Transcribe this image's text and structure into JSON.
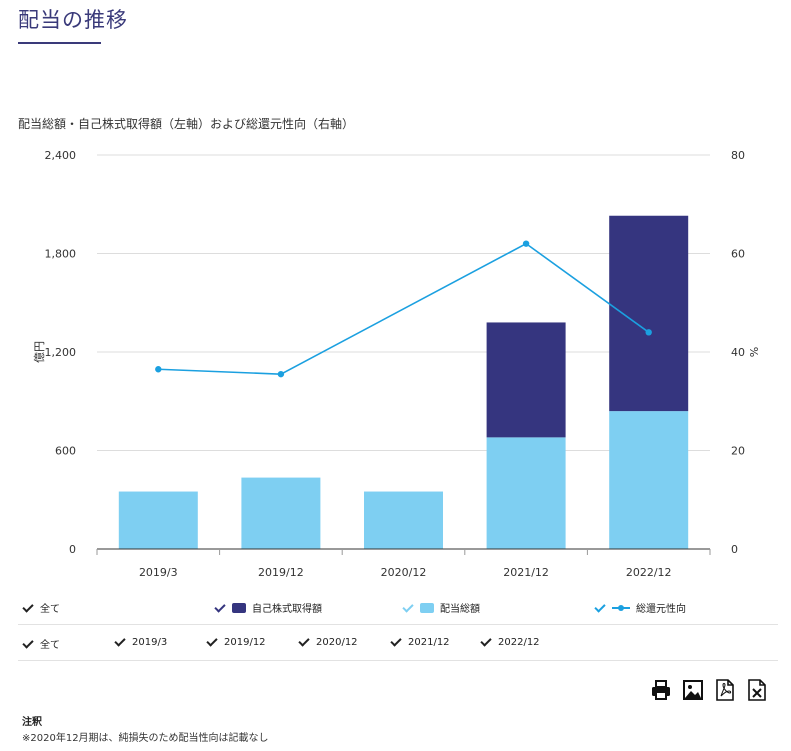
{
  "page": {
    "title": "配当の推移",
    "chart_caption": "配当総額・自己株式取得額（左軸）および総還元性向（右軸）",
    "notes_heading": "注釈",
    "notes_text": "※2020年12月期は、純損失のため配当性向は記載なし"
  },
  "legend": {
    "all_label": "全て",
    "series_labels": [
      "自己株式取得額",
      "配当総額",
      "総還元性向"
    ]
  },
  "category_filter": {
    "all_label": "全て",
    "items": [
      "2019/3",
      "2019/12",
      "2020/12",
      "2021/12",
      "2022/12"
    ]
  },
  "colors": {
    "title": "#3a3a7a",
    "buyback": "#35357f",
    "dividend": "#7ecff2",
    "payout_line": "#1ba0e0"
  },
  "toolbar": {
    "icons": [
      "print-icon",
      "image-icon",
      "pdf-icon",
      "excel-icon"
    ]
  },
  "chart_data": {
    "type": "bar",
    "stacked": true,
    "categories": [
      "2019/3",
      "2019/12",
      "2020/12",
      "2021/12",
      "2022/12"
    ],
    "series": [
      {
        "name": "配当総額",
        "axis": "left",
        "values": [
          350,
          435,
          350,
          680,
          840
        ]
      },
      {
        "name": "自己株式取得額",
        "axis": "left",
        "values": [
          0,
          0,
          0,
          700,
          1190
        ]
      },
      {
        "name": "総還元性向",
        "axis": "right",
        "type": "line",
        "values": [
          36.5,
          35.5,
          null,
          62,
          44
        ]
      }
    ],
    "ylabel": "億円",
    "ylim": [
      0,
      2400
    ],
    "yticks": [
      0,
      600,
      1200,
      1800,
      2400
    ],
    "y2label": "%",
    "y2lim": [
      0,
      80
    ],
    "y2ticks": [
      0,
      20,
      40,
      60,
      80
    ],
    "grid": true
  }
}
